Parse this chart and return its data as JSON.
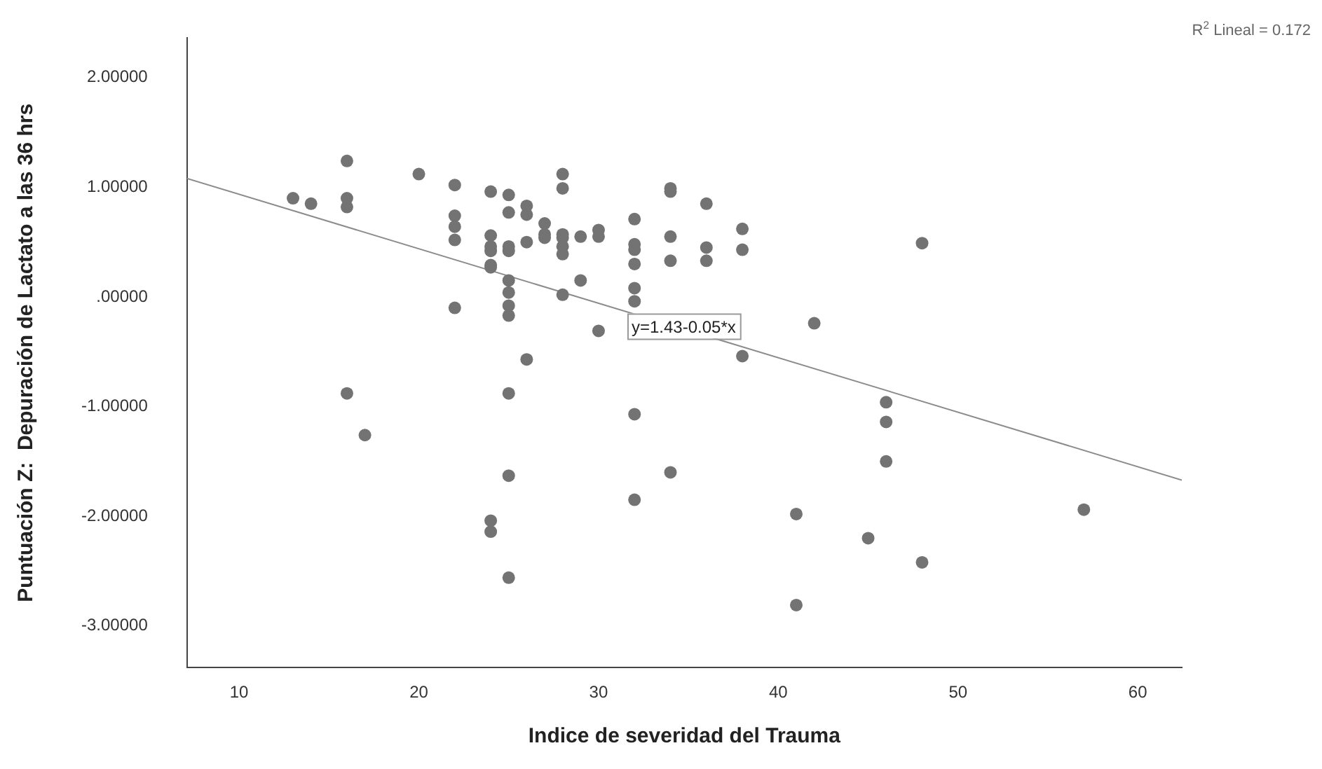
{
  "chart_data": {
    "type": "scatter",
    "xlabel": "Indice de severidad del Trauma",
    "ylabel": "Puntuación Z:  Depuración de Lactato a las 36 hrs",
    "xlim": [
      7.1,
      62.45
    ],
    "ylim": [
      -3.38,
      2.36
    ],
    "xticks": [
      10,
      20,
      30,
      40,
      50,
      60
    ],
    "yticks": [
      {
        "value": 2,
        "label": "2.00000"
      },
      {
        "value": 1,
        "label": "1.00000"
      },
      {
        "value": 0,
        "label": ".00000"
      },
      {
        "value": -1,
        "label": "-1.00000"
      },
      {
        "value": -2,
        "label": "-2.00000"
      },
      {
        "value": -3,
        "label": "-3.00000"
      }
    ],
    "grid": false,
    "legend": false,
    "marker": "circle",
    "annotations": [
      "R$^{2}$ Lineal = 0.172",
      {
        "text": "y=1.43-0.05*x",
        "x": 31.6,
        "y": -0.15
      }
    ],
    "series": [
      {
        "color": "#737373",
        "x": [
          13,
          14,
          16,
          16,
          16,
          16,
          17,
          20,
          22,
          22,
          22,
          22,
          22,
          24,
          24,
          24,
          24,
          24,
          24,
          24,
          24,
          25,
          25,
          25,
          25,
          25,
          25,
          25,
          25,
          25,
          25,
          25,
          26,
          26,
          26,
          26,
          27,
          27,
          27,
          28,
          28,
          28,
          28,
          28,
          28,
          28,
          29,
          29,
          30,
          30,
          30,
          32,
          32,
          32,
          32,
          32,
          32,
          32,
          32,
          34,
          34,
          34,
          34,
          34,
          36,
          36,
          36,
          38,
          38,
          38,
          42,
          48,
          46,
          46,
          46,
          41,
          45,
          48,
          41,
          57
        ],
        "values": [
          0.9,
          0.85,
          1.24,
          0.9,
          0.82,
          -0.88,
          -1.26,
          1.12,
          1.02,
          0.74,
          0.64,
          0.52,
          -0.1,
          0.96,
          0.56,
          0.46,
          0.42,
          0.29,
          0.27,
          -2.04,
          -2.14,
          0.93,
          0.77,
          0.46,
          0.42,
          0.15,
          0.04,
          -0.08,
          -0.17,
          -0.88,
          -1.63,
          -2.56,
          0.83,
          0.75,
          0.5,
          -0.57,
          0.67,
          0.57,
          0.54,
          1.12,
          0.99,
          0.57,
          0.54,
          0.46,
          0.39,
          0.02,
          0.55,
          0.15,
          0.61,
          0.55,
          -0.31,
          0.71,
          0.48,
          0.43,
          0.3,
          0.08,
          -0.04,
          -1.07,
          -1.85,
          0.99,
          0.96,
          0.55,
          0.33,
          -1.6,
          0.85,
          0.45,
          0.33,
          0.62,
          0.43,
          -0.54,
          -0.24,
          0.49,
          -0.96,
          -1.14,
          -1.5,
          -1.98,
          -2.2,
          -2.42,
          -2.81,
          -1.94
        ]
      },
      {
        "type": "line",
        "color": "#8c8c8c",
        "marker": "none",
        "x": [
          7.1,
          62.45
        ],
        "values": [
          1.08,
          -1.67
        ]
      }
    ]
  }
}
